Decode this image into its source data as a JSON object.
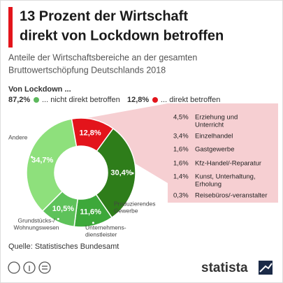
{
  "chart_data": {
    "type": "pie",
    "title": [
      "13 Prozent der Wirtschaft",
      "direkt von Lockdown betroffen"
    ],
    "subtitle": [
      "Anteile der Wirtschaftsbereiche an der gesamten",
      "Bruttowertschöpfung Deutschlands 2018"
    ],
    "legend_title": "Von Lockdown ...",
    "legend": [
      {
        "value": 87.2,
        "value_label": "87,2%",
        "name": "... nicht direkt betroffen",
        "color": "#5cb85c"
      },
      {
        "value": 12.8,
        "value_label": "12,8%",
        "name": "... direkt betroffen",
        "color": "#e3141b"
      }
    ],
    "categories": [
      null,
      [
        "Produzierendes",
        "Gewerbe"
      ],
      [
        "Unternehmens-",
        "dienstleister"
      ],
      [
        "Grundstücks-/",
        "Wohnungswesen"
      ],
      [
        "Andere"
      ]
    ],
    "values": [
      12.8,
      30.4,
      11.6,
      10.5,
      34.7
    ],
    "value_labels": [
      "12,8%",
      "30,4%",
      "11,6%",
      "10,5%",
      "34,7%"
    ],
    "colors": [
      "#e3141b",
      "#2e7d1a",
      "#3da83a",
      "#5ec25a",
      "#8ee07c"
    ],
    "breakdown": {
      "values": [
        4.5,
        3.4,
        1.6,
        1.6,
        1.4,
        0.3
      ],
      "value_labels": [
        "4,5%",
        "3,4%",
        "1,6%",
        "1,6%",
        "1,4%",
        "0,3%"
      ],
      "names": [
        [
          "Erziehung und",
          "Unterricht"
        ],
        [
          "Einzelhandel"
        ],
        [
          "Gastgewerbe"
        ],
        [
          "Kfz-Handel/-Reparatur"
        ],
        [
          "Kunst, Unterhaltung,",
          "Erholung"
        ],
        [
          "Reisebüros/-veranstalter"
        ]
      ]
    },
    "source": "Quelle: Statistisches Bundesamt",
    "brand": "statista"
  }
}
